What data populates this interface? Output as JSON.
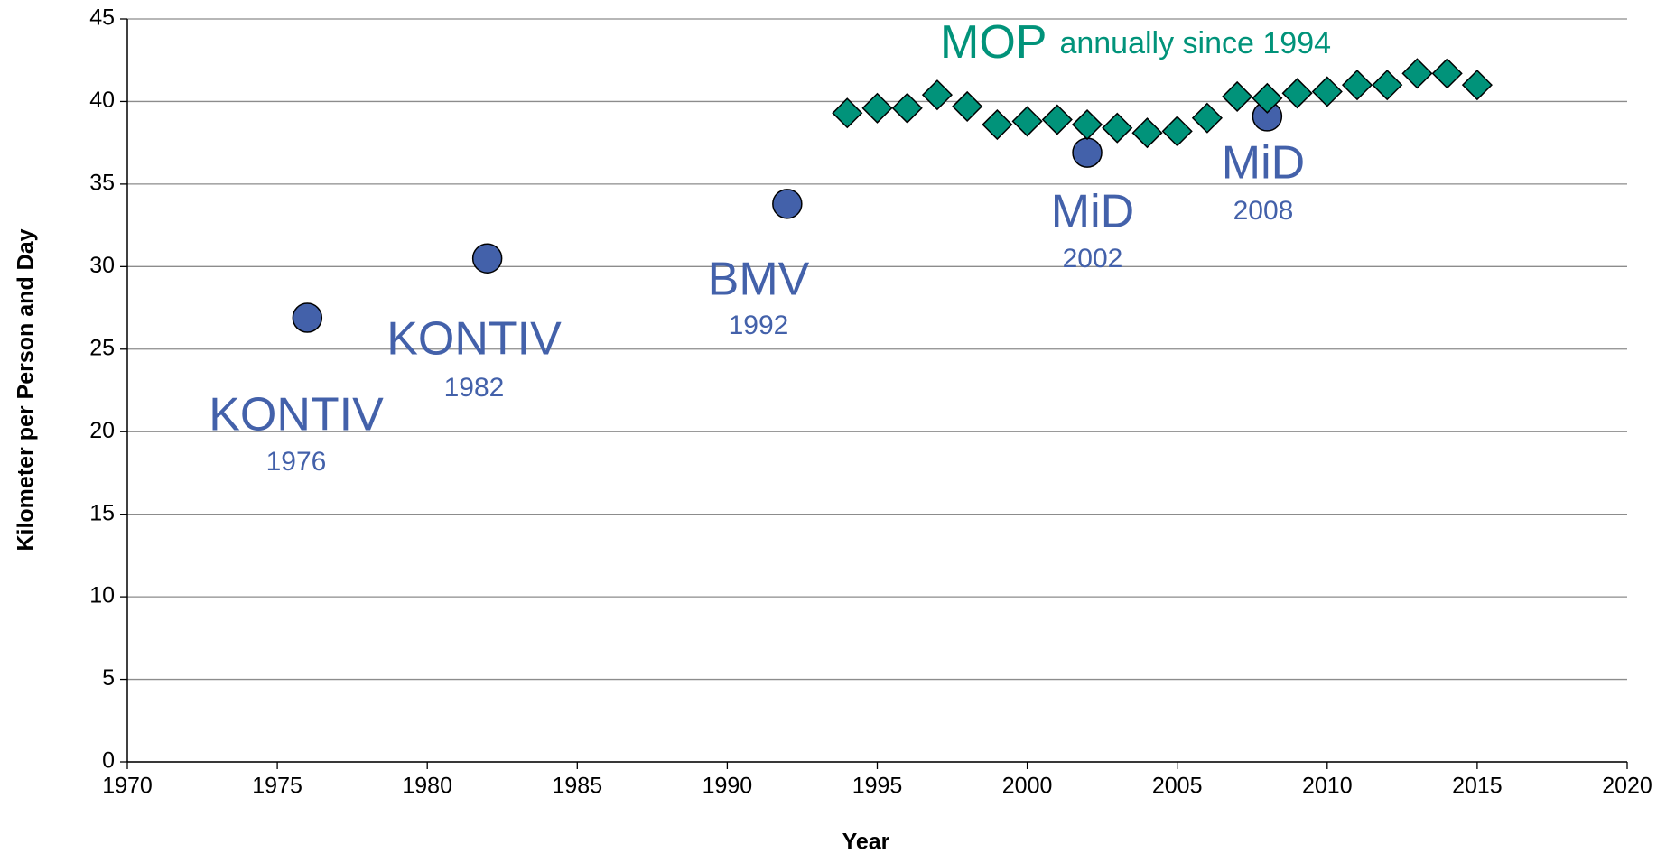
{
  "chart_data": {
    "type": "scatter",
    "xlabel": "Year",
    "ylabel": "Kilometer per Person and  Day",
    "xlim": [
      1970,
      2020
    ],
    "xticks": [
      1970,
      1975,
      1980,
      1985,
      1990,
      1995,
      2000,
      2005,
      2010,
      2015,
      2020
    ],
    "ylim": [
      0,
      45
    ],
    "yticks": [
      0,
      5,
      10,
      15,
      20,
      25,
      30,
      35,
      40,
      45
    ],
    "grid": true,
    "series": [
      {
        "color": "#4361aa",
        "marker": "circle",
        "x": [
          1976,
          1982,
          1992,
          2002,
          2008
        ],
        "values": [
          26.9,
          30.5,
          33.8,
          36.9,
          39.1
        ]
      },
      {
        "color": "#01937a",
        "marker": "diamond",
        "x": [
          1994,
          1995,
          1996,
          1997,
          1998,
          1999,
          2000,
          2001,
          2002,
          2003,
          2004,
          2005,
          2006,
          2007,
          2008,
          2009,
          2010,
          2011,
          2012,
          2013,
          2014,
          2015
        ],
        "values": [
          39.3,
          39.6,
          39.6,
          40.4,
          39.7,
          38.6,
          38.8,
          38.9,
          38.6,
          38.4,
          38.1,
          38.2,
          39.0,
          40.3,
          40.2,
          40.5,
          40.6,
          41.0,
          41.0,
          41.7,
          41.7,
          41.0
        ]
      }
    ],
    "annotations": [
      {
        "text": "KONTIV",
        "sub": "1976",
        "color": "#4361aa"
      },
      {
        "text": "KONTIV",
        "sub": "1982",
        "color": "#4361aa"
      },
      {
        "text": "BMV",
        "sub": "1992",
        "color": "#4361aa"
      },
      {
        "text": "MiD",
        "sub": "2002",
        "color": "#4361aa"
      },
      {
        "text": "MiD",
        "sub": "2008",
        "color": "#4361aa"
      },
      {
        "text": "MOP",
        "sub": "annually since 1994",
        "color": "#01937a"
      }
    ]
  }
}
